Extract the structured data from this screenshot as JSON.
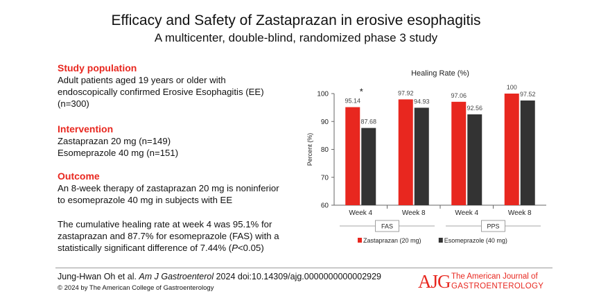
{
  "header": {
    "title": "Efficacy and Safety of Zastaprazan in erosive esophagitis",
    "subtitle": "A multicenter, double-blind, randomized phase 3 study"
  },
  "left": {
    "population_heading": "Study population",
    "population_lines": [
      "Adult patients aged 19 years or older with",
      "endoscopically confirmed Erosive Esophagitis (EE)",
      "(n=300)"
    ],
    "intervention_heading": "Intervention",
    "intervention_lines": [
      "Zastaprazan 20 mg (n=149)",
      "Esomeprazole 40 mg (n=151)"
    ],
    "outcome_heading": "Outcome",
    "outcome_lines": [
      "An 8-week therapy of zastaprazan 20 mg is noninferior",
      "to esomeprazole 40 mg in subjects with EE"
    ],
    "cumulative_lines": [
      "The cumulative healing rate at week 4 was 95.1% for",
      "zastaprazan and 87.7% for esomeprazole (FAS) with a",
      "statistically significant difference of 7.44% ("
    ],
    "p_symbol": "P",
    "p_rest": "<0.05)"
  },
  "footer": {
    "citation_authors": "Jung-Hwan Oh et al. ",
    "citation_journal": "Am J Gastroenterol",
    "citation_rest": " 2024 doi:10.14309/ajg.0000000000002929",
    "copyright": "© 2024 by The American College of Gastroenterology",
    "logo_mark": "AJG",
    "logo_line1": "The American Journal of",
    "logo_line2": "GASTROENTEROLOGY"
  },
  "chart_data": {
    "type": "bar",
    "title": "Healing Rate (%)",
    "ylabel": "Percent (%)",
    "ylim": [
      60,
      100
    ],
    "yticks": [
      60,
      70,
      80,
      90,
      100
    ],
    "categories": [
      "Week 4",
      "Week 8",
      "Week 4",
      "Week 8"
    ],
    "groups": [
      {
        "label": "FAS",
        "categories": [
          0,
          1
        ]
      },
      {
        "label": "PPS",
        "categories": [
          2,
          3
        ]
      }
    ],
    "series": [
      {
        "name": "Zastaprazan (20 mg)",
        "color": "#e8271f",
        "values": [
          95.14,
          97.92,
          97.06,
          100
        ],
        "labels": [
          "95.14",
          "97.92",
          "97.06",
          "100"
        ]
      },
      {
        "name": "Esomeprazole (40 mg)",
        "color": "#333333",
        "values": [
          87.68,
          94.93,
          92.56,
          97.52
        ],
        "labels": [
          "87.68",
          "94.93",
          "92.56",
          "97.52"
        ]
      }
    ],
    "annotation": "*",
    "annotation_category": 0,
    "grid": false,
    "legend": "bottom"
  }
}
